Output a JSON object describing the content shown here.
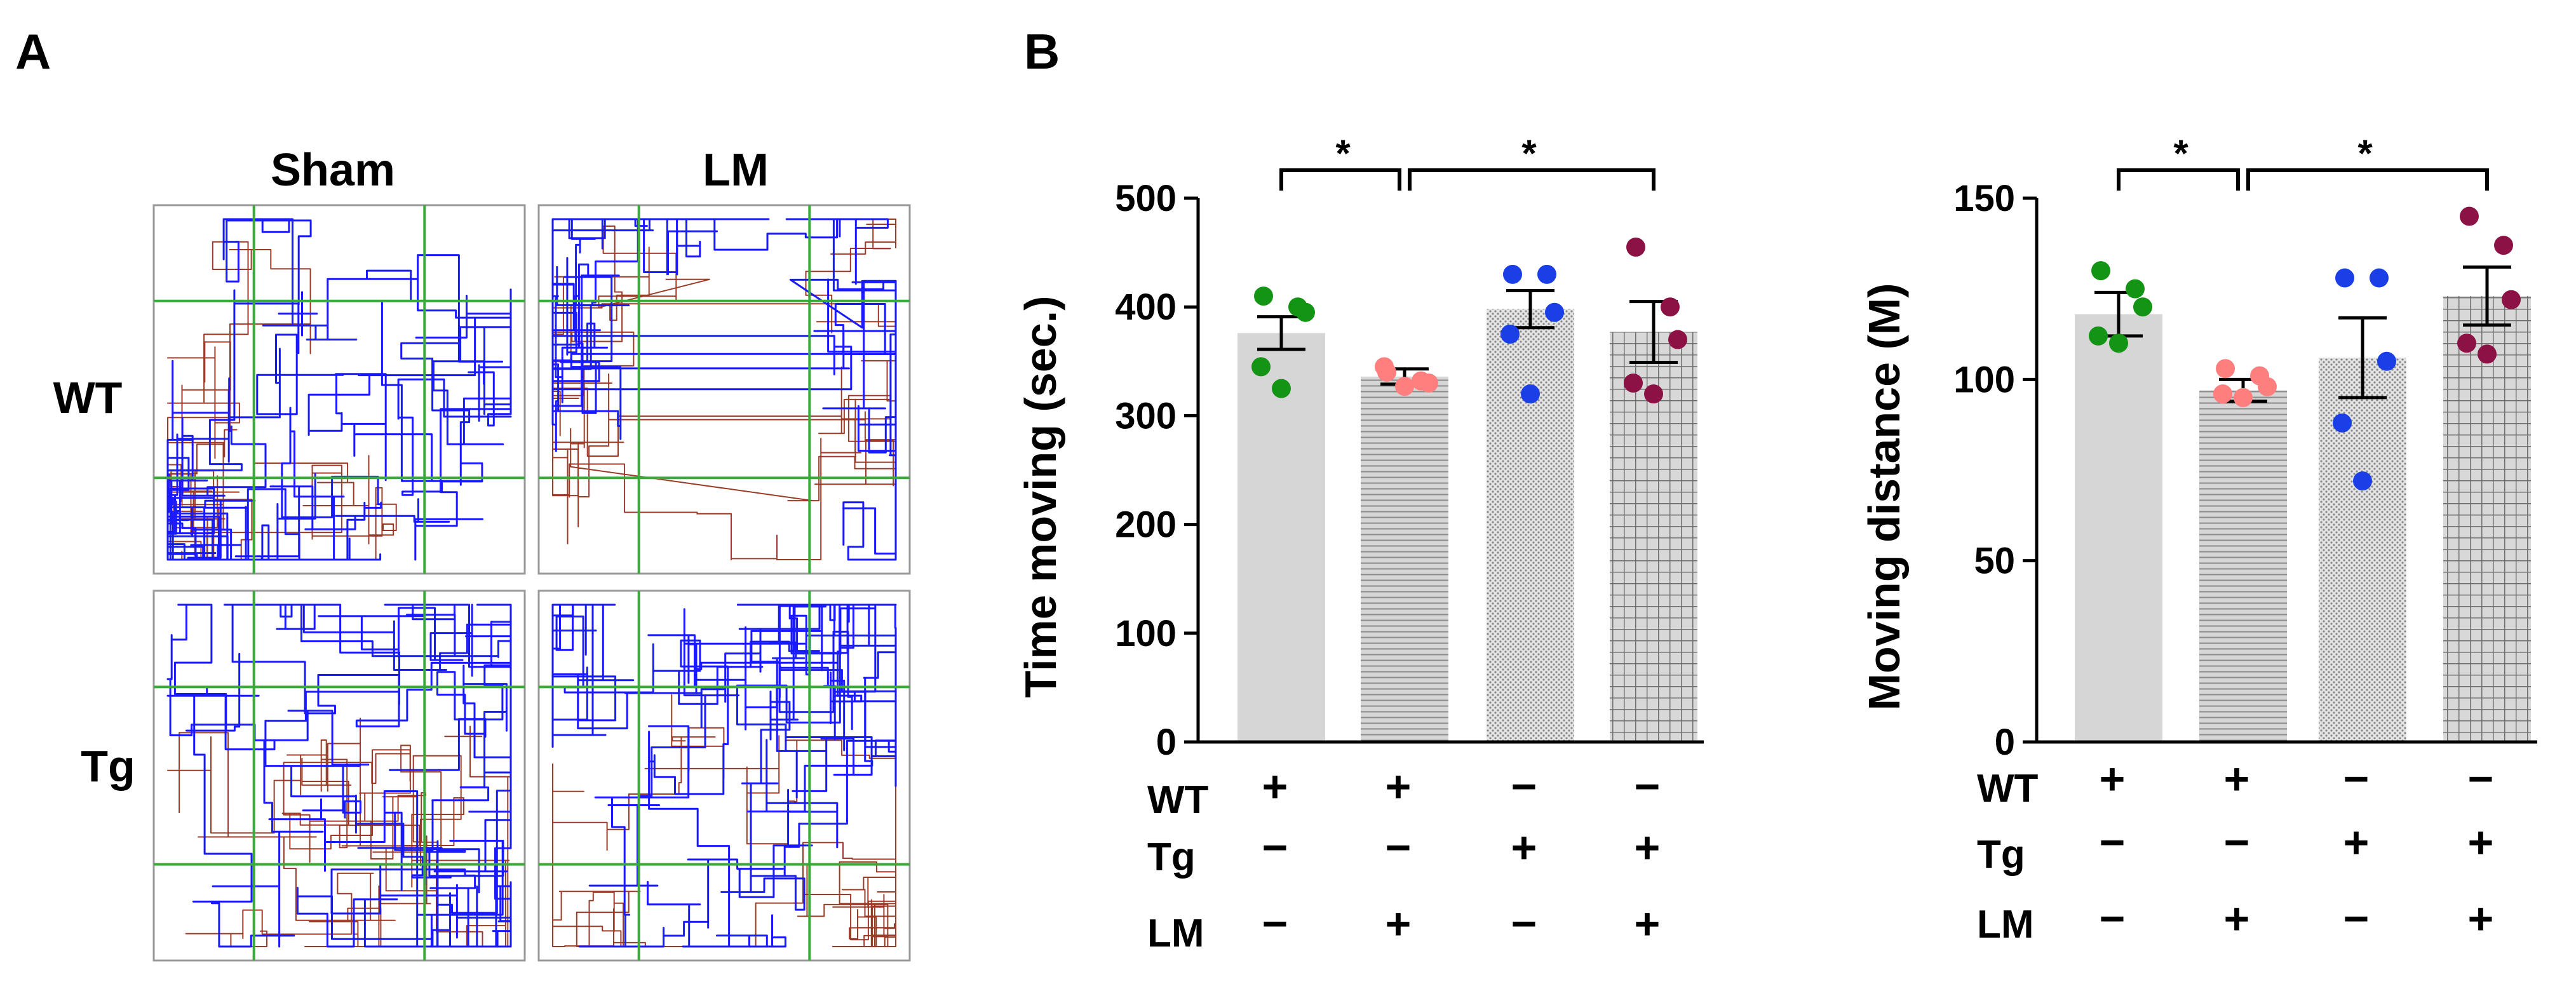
{
  "panel_a": {
    "label": "A",
    "col_labels": [
      "Sham",
      "LM"
    ],
    "row_labels": [
      "WT",
      "Tg"
    ],
    "track_colors": {
      "path": "#1a1aff",
      "secondary": "#9c3a28",
      "grid": "#3aaa3a",
      "border": "#999999"
    }
  },
  "panel_b": {
    "label": "B",
    "group_rows": [
      {
        "name": "WT",
        "signs": [
          "+",
          "+",
          "−",
          "−"
        ]
      },
      {
        "name": "Tg",
        "signs": [
          "−",
          "−",
          "+",
          "+"
        ]
      },
      {
        "name": "LM",
        "signs": [
          "−",
          "+",
          "−",
          "+"
        ]
      }
    ],
    "significance_mark": "*"
  },
  "chart_data": [
    {
      "type": "bar",
      "ylabel": "Time moving (sec.)",
      "ylim": [
        0,
        500
      ],
      "yticks": [
        0,
        100,
        200,
        300,
        400,
        500
      ],
      "categories": [
        "WT+ Tg− LM−",
        "WT+ Tg− LM+",
        "WT− Tg+ LM−",
        "WT− Tg+ LM+"
      ],
      "values": [
        376,
        336,
        398,
        377
      ],
      "sem": [
        15,
        7,
        17,
        28
      ],
      "points": [
        [
          410,
          400,
          395,
          345,
          325
        ],
        [
          340,
          332,
          330,
          345,
          327
        ],
        [
          430,
          430,
          395,
          375,
          320
        ],
        [
          455,
          400,
          370,
          330,
          320
        ]
      ],
      "point_colors": [
        "#149414",
        "#ff7f7f",
        "#1a3fe6",
        "#8c1246"
      ],
      "bar_patterns": [
        "solid",
        "hlines",
        "dots",
        "grid"
      ],
      "significance": [
        {
          "from": 0,
          "to": 1
        },
        {
          "from": 1,
          "to": 3
        }
      ]
    },
    {
      "type": "bar",
      "ylabel": "Moving distance (M)",
      "ylim": [
        0,
        150
      ],
      "yticks": [
        0,
        50,
        100,
        150
      ],
      "categories": [
        "WT+ Tg− LM−",
        "WT+ Tg− LM+",
        "WT− Tg+ LM−",
        "WT− Tg+ LM+"
      ],
      "values": [
        118,
        97,
        106,
        123
      ],
      "sem": [
        6,
        3,
        11,
        8
      ],
      "points": [
        [
          130,
          125,
          120,
          112,
          110
        ],
        [
          103,
          101,
          98,
          96,
          95
        ],
        [
          128,
          128,
          105,
          88,
          72
        ],
        [
          145,
          137,
          122,
          110,
          107
        ]
      ],
      "point_colors": [
        "#149414",
        "#ff7f7f",
        "#1a3fe6",
        "#8c1246"
      ],
      "bar_patterns": [
        "solid",
        "hlines",
        "dots",
        "grid"
      ],
      "significance": [
        {
          "from": 0,
          "to": 1
        },
        {
          "from": 1,
          "to": 3
        }
      ]
    }
  ]
}
